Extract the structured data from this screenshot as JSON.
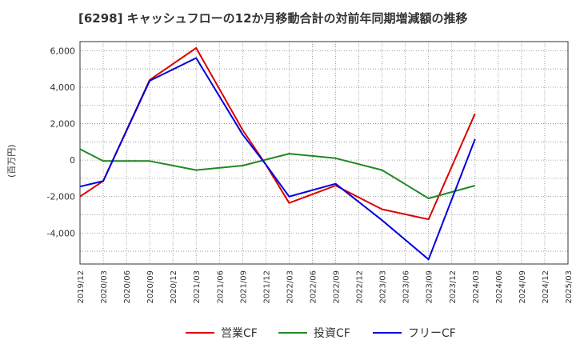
{
  "chart_data": {
    "type": "line",
    "title": "[6298]  キャッシュフローの12か月移動合計の対前年同期増減額の推移",
    "ylabel": "(百万円)",
    "xlabel": "",
    "ylim": [
      -5700,
      6500
    ],
    "yticks": [
      6000,
      4000,
      2000,
      0,
      -2000,
      -4000
    ],
    "ytick_labels": [
      "6,000",
      "4,000",
      "2,000",
      "0",
      "-2,000",
      "-4,000"
    ],
    "categories": [
      "2019/12",
      "2020/03",
      "2020/06",
      "2020/09",
      "2020/12",
      "2021/03",
      "2021/06",
      "2021/09",
      "2021/12",
      "2022/03",
      "2022/06",
      "2022/09",
      "2022/12",
      "2023/03",
      "2023/06",
      "2023/09",
      "2023/12",
      "2024/03",
      "2024/06",
      "2024/09",
      "2024/12",
      "2025/03"
    ],
    "grid": true,
    "series": [
      {
        "name": "営業CF",
        "color": "#dd0000",
        "values": [
          -2000,
          -1150,
          null,
          4400,
          null,
          6150,
          null,
          1650,
          -250,
          -2350,
          null,
          -1400,
          null,
          -2700,
          null,
          -3250,
          null,
          2550,
          null,
          null,
          null,
          null
        ]
      },
      {
        "name": "投資CF",
        "color": "#228822",
        "values": [
          600,
          -50,
          null,
          -50,
          null,
          -550,
          null,
          -300,
          null,
          350,
          null,
          100,
          null,
          -550,
          null,
          -2100,
          null,
          -1400,
          null,
          null,
          null,
          null
        ]
      },
      {
        "name": "フリーCF",
        "color": "#0000dd",
        "values": [
          -1450,
          -1150,
          null,
          4350,
          null,
          5600,
          null,
          1400,
          -250,
          -2000,
          null,
          -1300,
          null,
          -3300,
          null,
          -5450,
          null,
          1150,
          null,
          null,
          null,
          null
        ]
      }
    ]
  }
}
